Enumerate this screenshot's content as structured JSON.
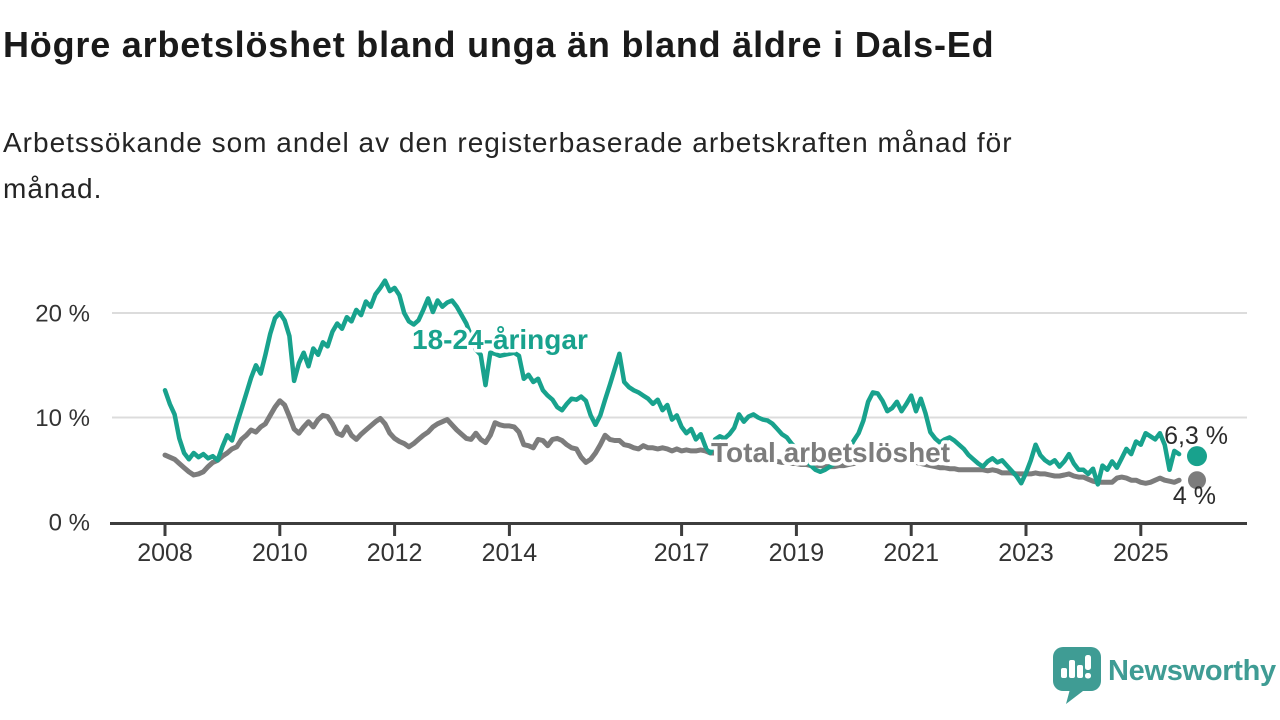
{
  "header": {
    "title": "Högre arbetslöshet bland unga än bland äldre i Dals-Ed",
    "subtitle_lines": [
      "Arbetssökande som andel av den registerbaserade arbetskraften månad för",
      "månad."
    ]
  },
  "chart_data": {
    "type": "line",
    "title": "Högre arbetslöshet bland unga än bland äldre i Dals-Ed",
    "subtitle": "Arbetssökande som andel av den registerbaserade arbetskraften månad för månad.",
    "x_interval": "monthly",
    "x_start": "2008-01",
    "x_end": "2025-10",
    "xlim": [
      2008,
      2026
    ],
    "ylim": [
      0,
      24
    ],
    "grid": "horizontal",
    "legend_position": "inline-labels",
    "x_ticks": [
      "2008",
      "2010",
      "2012",
      "2014",
      "2017",
      "2019",
      "2021",
      "2023",
      "2025"
    ],
    "y_ticks": [
      {
        "label": "0 %",
        "value": 0
      },
      {
        "label": "10 %",
        "value": 10
      },
      {
        "label": "20 %",
        "value": 20
      }
    ],
    "series": [
      {
        "name": "Total arbetslöshet",
        "color": "#7c7c7c",
        "end_label": "4 %",
        "values": [
          6.4,
          6.2,
          6.0,
          5.6,
          5.2,
          4.8,
          4.5,
          4.6,
          4.8,
          5.3,
          5.7,
          5.9,
          6.3,
          6.6,
          7.0,
          7.2,
          7.9,
          8.3,
          8.8,
          8.6,
          9.1,
          9.4,
          10.2,
          11.0,
          11.6,
          11.2,
          10.1,
          8.9,
          8.5,
          9.1,
          9.6,
          9.1,
          9.8,
          10.2,
          10.1,
          9.4,
          8.5,
          8.3,
          9.1,
          8.3,
          7.9,
          8.4,
          8.8,
          9.2,
          9.6,
          9.9,
          9.4,
          8.5,
          8.0,
          7.7,
          7.5,
          7.2,
          7.5,
          7.9,
          8.3,
          8.6,
          9.1,
          9.4,
          9.6,
          9.8,
          9.3,
          8.8,
          8.4,
          8.0,
          7.9,
          8.5,
          7.9,
          7.6,
          8.3,
          9.5,
          9.3,
          9.2,
          9.2,
          9.1,
          8.6,
          7.4,
          7.3,
          7.1,
          7.9,
          7.8,
          7.3,
          7.9,
          8.0,
          7.8,
          7.4,
          7.1,
          7.0,
          6.2,
          5.7,
          6.0,
          6.6,
          7.4,
          8.3,
          7.9,
          7.8,
          7.8,
          7.4,
          7.3,
          7.1,
          7.0,
          7.3,
          7.1,
          7.1,
          7.0,
          7.1,
          7.0,
          6.8,
          7.0,
          6.8,
          6.9,
          6.8,
          6.8,
          6.9,
          6.8,
          6.6,
          6.6,
          6.5,
          6.4,
          6.3,
          6.3,
          6.2,
          6.2,
          6.1,
          6.0,
          6.0,
          5.9,
          5.9,
          5.8,
          5.8,
          5.7,
          5.7,
          5.6,
          5.6,
          5.5,
          5.5,
          5.4,
          5.4,
          5.4,
          5.3,
          5.3,
          5.3,
          5.4,
          5.4,
          5.5,
          5.6,
          5.7,
          6.0,
          6.3,
          6.4,
          6.3,
          6.2,
          6.1,
          6.0,
          5.9,
          5.9,
          5.8,
          5.8,
          5.7,
          5.6,
          5.5,
          5.4,
          5.3,
          5.2,
          5.2,
          5.1,
          5.1,
          5.0,
          5.0,
          5.0,
          5.0,
          5.0,
          5.0,
          4.9,
          5.0,
          4.9,
          4.7,
          4.7,
          4.7,
          4.6,
          4.6,
          4.6,
          4.6,
          4.7,
          4.6,
          4.6,
          4.5,
          4.4,
          4.4,
          4.5,
          4.6,
          4.4,
          4.3,
          4.3,
          4.1,
          3.9,
          3.8,
          3.8,
          3.8,
          3.8,
          4.2,
          4.3,
          4.2,
          4.0,
          4.0,
          3.8,
          3.7,
          3.8,
          4.0,
          4.2,
          4.0,
          3.9,
          3.8,
          4.0,
          4.0
        ]
      },
      {
        "name": "18-24-åringar",
        "color": "#18a28d",
        "end_label": "6,3 %",
        "values": [
          12.6,
          11.3,
          10.3,
          8.0,
          6.6,
          6.0,
          6.6,
          6.2,
          6.5,
          6.1,
          6.3,
          5.9,
          7.2,
          8.3,
          7.8,
          9.4,
          10.8,
          12.3,
          13.8,
          15.0,
          14.2,
          16.0,
          18.0,
          19.5,
          20.0,
          19.3,
          17.8,
          13.5,
          15.2,
          16.2,
          14.9,
          16.6,
          16.0,
          17.2,
          16.8,
          18.2,
          19.0,
          18.5,
          19.6,
          19.2,
          20.3,
          19.8,
          21.1,
          20.6,
          21.8,
          22.4,
          23.1,
          22.1,
          22.4,
          21.7,
          20.0,
          19.2,
          18.9,
          19.3,
          20.3,
          21.4,
          20.1,
          21.2,
          20.6,
          21.0,
          21.2,
          20.6,
          19.8,
          19.0,
          17.8,
          16.5,
          16.0,
          13.1,
          16.2,
          16.1,
          15.9,
          16.0,
          16.1,
          16.2,
          15.9,
          13.7,
          14.1,
          13.4,
          13.7,
          12.6,
          12.1,
          11.7,
          11.0,
          10.7,
          11.3,
          11.8,
          11.7,
          12.0,
          11.6,
          10.2,
          9.3,
          10.2,
          11.7,
          13.1,
          14.6,
          16.1,
          13.4,
          12.9,
          12.6,
          12.4,
          12.1,
          11.8,
          11.3,
          11.7,
          10.7,
          11.2,
          9.8,
          10.2,
          9.1,
          8.5,
          8.9,
          7.9,
          8.4,
          7.2,
          6.6,
          7.9,
          8.2,
          8.0,
          8.4,
          9.0,
          10.3,
          9.6,
          10.1,
          10.3,
          10.0,
          9.8,
          9.7,
          9.4,
          8.9,
          8.4,
          8.1,
          7.5,
          7.0,
          6.5,
          6.0,
          5.4,
          5.0,
          4.8,
          5.0,
          5.3,
          5.6,
          5.9,
          6.3,
          7.0,
          7.8,
          8.5,
          9.7,
          11.5,
          12.4,
          12.3,
          11.6,
          10.6,
          10.9,
          11.5,
          10.6,
          11.3,
          12.1,
          10.6,
          11.8,
          10.4,
          8.6,
          8.0,
          7.6,
          7.9,
          8.1,
          7.8,
          7.4,
          7.0,
          6.4,
          6.0,
          5.6,
          5.3,
          5.8,
          6.1,
          5.7,
          5.9,
          5.4,
          4.9,
          4.4,
          3.7,
          4.7,
          5.9,
          7.4,
          6.4,
          5.9,
          5.6,
          5.9,
          5.3,
          5.8,
          6.5,
          5.6,
          5.0,
          5.0,
          4.6,
          5.1,
          3.6,
          5.4,
          5.0,
          5.8,
          5.2,
          6.1,
          7.0,
          6.5,
          7.7,
          7.4,
          8.5,
          8.2,
          7.9,
          8.5,
          7.4,
          5.0,
          6.8,
          6.5,
          6.3
        ]
      }
    ]
  },
  "branding": {
    "logo_text": "Newsworthy",
    "logo_color": "#3f9c94"
  },
  "colors": {
    "youth_line": "#18a28d",
    "total_line": "#7c7c7c",
    "gridline": "#dcdcdc",
    "axis": "#3d3d3d",
    "text_dark": "#1a1a1a"
  }
}
